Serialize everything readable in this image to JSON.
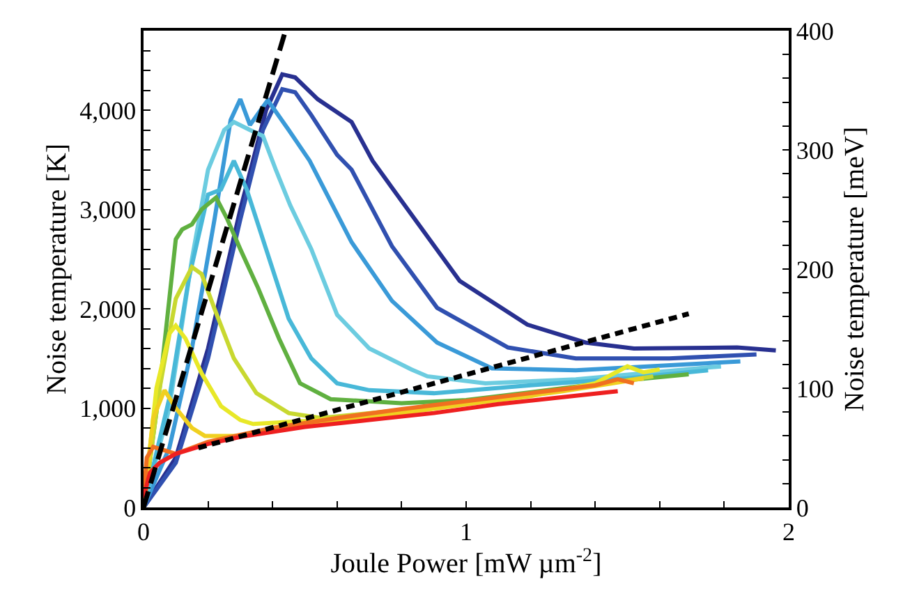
{
  "chart_data": {
    "type": "line",
    "xlabel": "Joule Power [mW µm$^{-2}$]",
    "ylabel": "Noise temperature [K]",
    "y2label": "Noise temperature [meV]",
    "xlim": [
      0,
      2
    ],
    "xticks": [
      0,
      {
        "value": 0.2,
        "label": null
      },
      {
        "value": 0.4,
        "label": null
      },
      {
        "value": 0.6,
        "label": null
      },
      {
        "value": 0.8,
        "label": null
      },
      1,
      {
        "value": 1.2,
        "label": null
      },
      {
        "value": 1.4,
        "label": null
      },
      {
        "value": 1.6,
        "label": null
      },
      {
        "value": 1.8,
        "label": null
      },
      2
    ],
    "ylim": [
      0,
      4800
    ],
    "yticks": [
      0,
      {
        "value": 200,
        "label": null
      },
      {
        "value": 400,
        "label": null
      },
      {
        "value": 600,
        "label": null
      },
      {
        "value": 800,
        "label": null
      },
      {
        "value": 1000,
        "label": "1,000"
      },
      {
        "value": 1200,
        "label": null
      },
      {
        "value": 1400,
        "label": null
      },
      {
        "value": 1600,
        "label": null
      },
      {
        "value": 1800,
        "label": null
      },
      {
        "value": 2000,
        "label": "2,000"
      },
      {
        "value": 2200,
        "label": null
      },
      {
        "value": 2400,
        "label": null
      },
      {
        "value": 2600,
        "label": null
      },
      {
        "value": 2800,
        "label": null
      },
      {
        "value": 3000,
        "label": "3,000"
      },
      {
        "value": 3200,
        "label": null
      },
      {
        "value": 3400,
        "label": null
      },
      {
        "value": 3600,
        "label": null
      },
      {
        "value": 3800,
        "label": null
      },
      {
        "value": 4000,
        "label": "4,000"
      },
      {
        "value": 4200,
        "label": null
      },
      {
        "value": 4400,
        "label": null
      },
      {
        "value": 4600,
        "label": null
      }
    ],
    "y2lim": [
      0,
      400
    ],
    "y2ticks": [
      0,
      {
        "value": 20,
        "label": null
      },
      {
        "value": 40,
        "label": null
      },
      {
        "value": 60,
        "label": null
      },
      {
        "value": 80,
        "label": null
      },
      100,
      {
        "value": 120,
        "label": null
      },
      {
        "value": 140,
        "label": null
      },
      {
        "value": 160,
        "label": null
      },
      {
        "value": 180,
        "label": null
      },
      200,
      {
        "value": 220,
        "label": null
      },
      {
        "value": 240,
        "label": null
      },
      {
        "value": 260,
        "label": null
      },
      {
        "value": 280,
        "label": null
      },
      300,
      {
        "value": 320,
        "label": null
      },
      {
        "value": 340,
        "label": null
      },
      {
        "value": 360,
        "label": null
      },
      {
        "value": 380,
        "label": null
      },
      400
    ],
    "marker": "none",
    "line_style": "solid",
    "series": [
      {
        "color": "#283090",
        "x": [
          0,
          0.1,
          0.2,
          0.3,
          0.38,
          0.43,
          0.47,
          0.54,
          0.645,
          0.71,
          0.77,
          0.98,
          1.19,
          1.37,
          1.52,
          1.84,
          1.96
        ],
        "values": [
          0,
          500,
          1600,
          3000,
          4000,
          4360,
          4330,
          4110,
          3880,
          3490,
          3220,
          2280,
          1840,
          1660,
          1600,
          1610,
          1580
        ]
      },
      {
        "color": "#3050b0",
        "x": [
          0,
          0.1,
          0.2,
          0.3,
          0.37,
          0.43,
          0.47,
          0.52,
          0.6,
          0.645,
          0.77,
          0.91,
          1.13,
          1.34,
          1.63,
          1.9
        ],
        "values": [
          0,
          450,
          1500,
          2900,
          3800,
          4210,
          4180,
          3950,
          3550,
          3400,
          2630,
          2010,
          1610,
          1500,
          1500,
          1540
        ]
      },
      {
        "color": "#3a9ad8",
        "x": [
          0,
          0.08,
          0.15,
          0.22,
          0.27,
          0.3,
          0.33,
          0.385,
          0.45,
          0.515,
          0.645,
          0.77,
          0.91,
          1.08,
          1.34,
          1.85
        ],
        "values": [
          0,
          600,
          1600,
          2900,
          3900,
          4110,
          3850,
          4100,
          3800,
          3490,
          2670,
          2080,
          1660,
          1400,
          1380,
          1470
        ]
      },
      {
        "color": "#6ccce0",
        "x": [
          0,
          0.08,
          0.15,
          0.2,
          0.25,
          0.28,
          0.33,
          0.37,
          0.41,
          0.455,
          0.52,
          0.6,
          0.7,
          0.83,
          0.88,
          1.06,
          1.34,
          1.79
        ],
        "values": [
          0,
          1000,
          2500,
          3400,
          3800,
          3880,
          3800,
          3740,
          3400,
          3040,
          2600,
          1940,
          1600,
          1390,
          1320,
          1250,
          1290,
          1420
        ]
      },
      {
        "color": "#48b8d8",
        "x": [
          0,
          0.08,
          0.14,
          0.2,
          0.24,
          0.28,
          0.32,
          0.38,
          0.45,
          0.52,
          0.6,
          0.7,
          0.9,
          1.2,
          1.5,
          1.75
        ],
        "values": [
          0,
          1100,
          2300,
          3150,
          3200,
          3490,
          3200,
          2600,
          1900,
          1500,
          1250,
          1180,
          1150,
          1230,
          1300,
          1380
        ]
      },
      {
        "color": "#60b040",
        "x": [
          0,
          0.05,
          0.1,
          0.12,
          0.15,
          0.18,
          0.225,
          0.26,
          0.3,
          0.355,
          0.42,
          0.485,
          0.58,
          0.8,
          1.0,
          1.3,
          1.5,
          1.69
        ],
        "values": [
          0,
          1200,
          2700,
          2800,
          2850,
          3000,
          3120,
          2900,
          2600,
          2210,
          1700,
          1250,
          1090,
          1050,
          1080,
          1200,
          1280,
          1340
        ]
      },
      {
        "color": "#c8d830",
        "x": [
          0,
          0.05,
          0.1,
          0.15,
          0.18,
          0.22,
          0.28,
          0.35,
          0.45,
          0.55,
          0.8,
          1.0,
          1.3,
          1.58
        ],
        "values": [
          0,
          1200,
          2100,
          2420,
          2350,
          2000,
          1500,
          1150,
          950,
          900,
          980,
          1060,
          1180,
          1320
        ]
      },
      {
        "color": "#e8e828",
        "x": [
          0,
          0.04,
          0.08,
          0.1,
          0.13,
          0.18,
          0.24,
          0.3,
          0.34,
          0.5,
          0.8,
          1.0,
          1.2,
          1.4,
          1.5,
          1.55,
          1.6
        ],
        "values": [
          0,
          1200,
          1750,
          1830,
          1700,
          1350,
          1020,
          880,
          840,
          870,
          950,
          1040,
          1120,
          1250,
          1420,
          1360,
          1390
        ]
      },
      {
        "color": "#f0d020",
        "x": [
          0,
          0.03,
          0.065,
          0.1,
          0.15,
          0.19,
          0.3,
          0.5,
          0.8,
          1.0,
          1.3,
          1.55
        ],
        "values": [
          0,
          900,
          1180,
          1000,
          800,
          720,
          720,
          830,
          950,
          1040,
          1170,
          1300
        ]
      },
      {
        "color": "#f07020",
        "x": [
          0,
          0.01,
          0.03,
          0.1,
          0.2,
          0.4,
          0.6,
          0.8,
          1.0,
          1.2,
          1.4,
          1.47,
          1.52
        ],
        "values": [
          100,
          500,
          610,
          540,
          660,
          800,
          900,
          990,
          1070,
          1150,
          1230,
          1290,
          1250
        ]
      },
      {
        "color": "#ee2020",
        "x": [
          0,
          0.02,
          0.05,
          0.1,
          0.2,
          0.3,
          0.5,
          0.7,
          0.9,
          1.1,
          1.3,
          1.47
        ],
        "values": [
          100,
          350,
          450,
          540,
          640,
          710,
          810,
          880,
          950,
          1040,
          1110,
          1170
        ]
      },
      {
        "color": "#000000",
        "line_style": "dashed",
        "x": [
          0,
          0.44
        ],
        "values": [
          0,
          4800
        ]
      },
      {
        "color": "#000000",
        "line_style": "dotted",
        "x": [
          0.17,
          1.69
        ],
        "values": [
          600,
          1950
        ]
      }
    ]
  }
}
